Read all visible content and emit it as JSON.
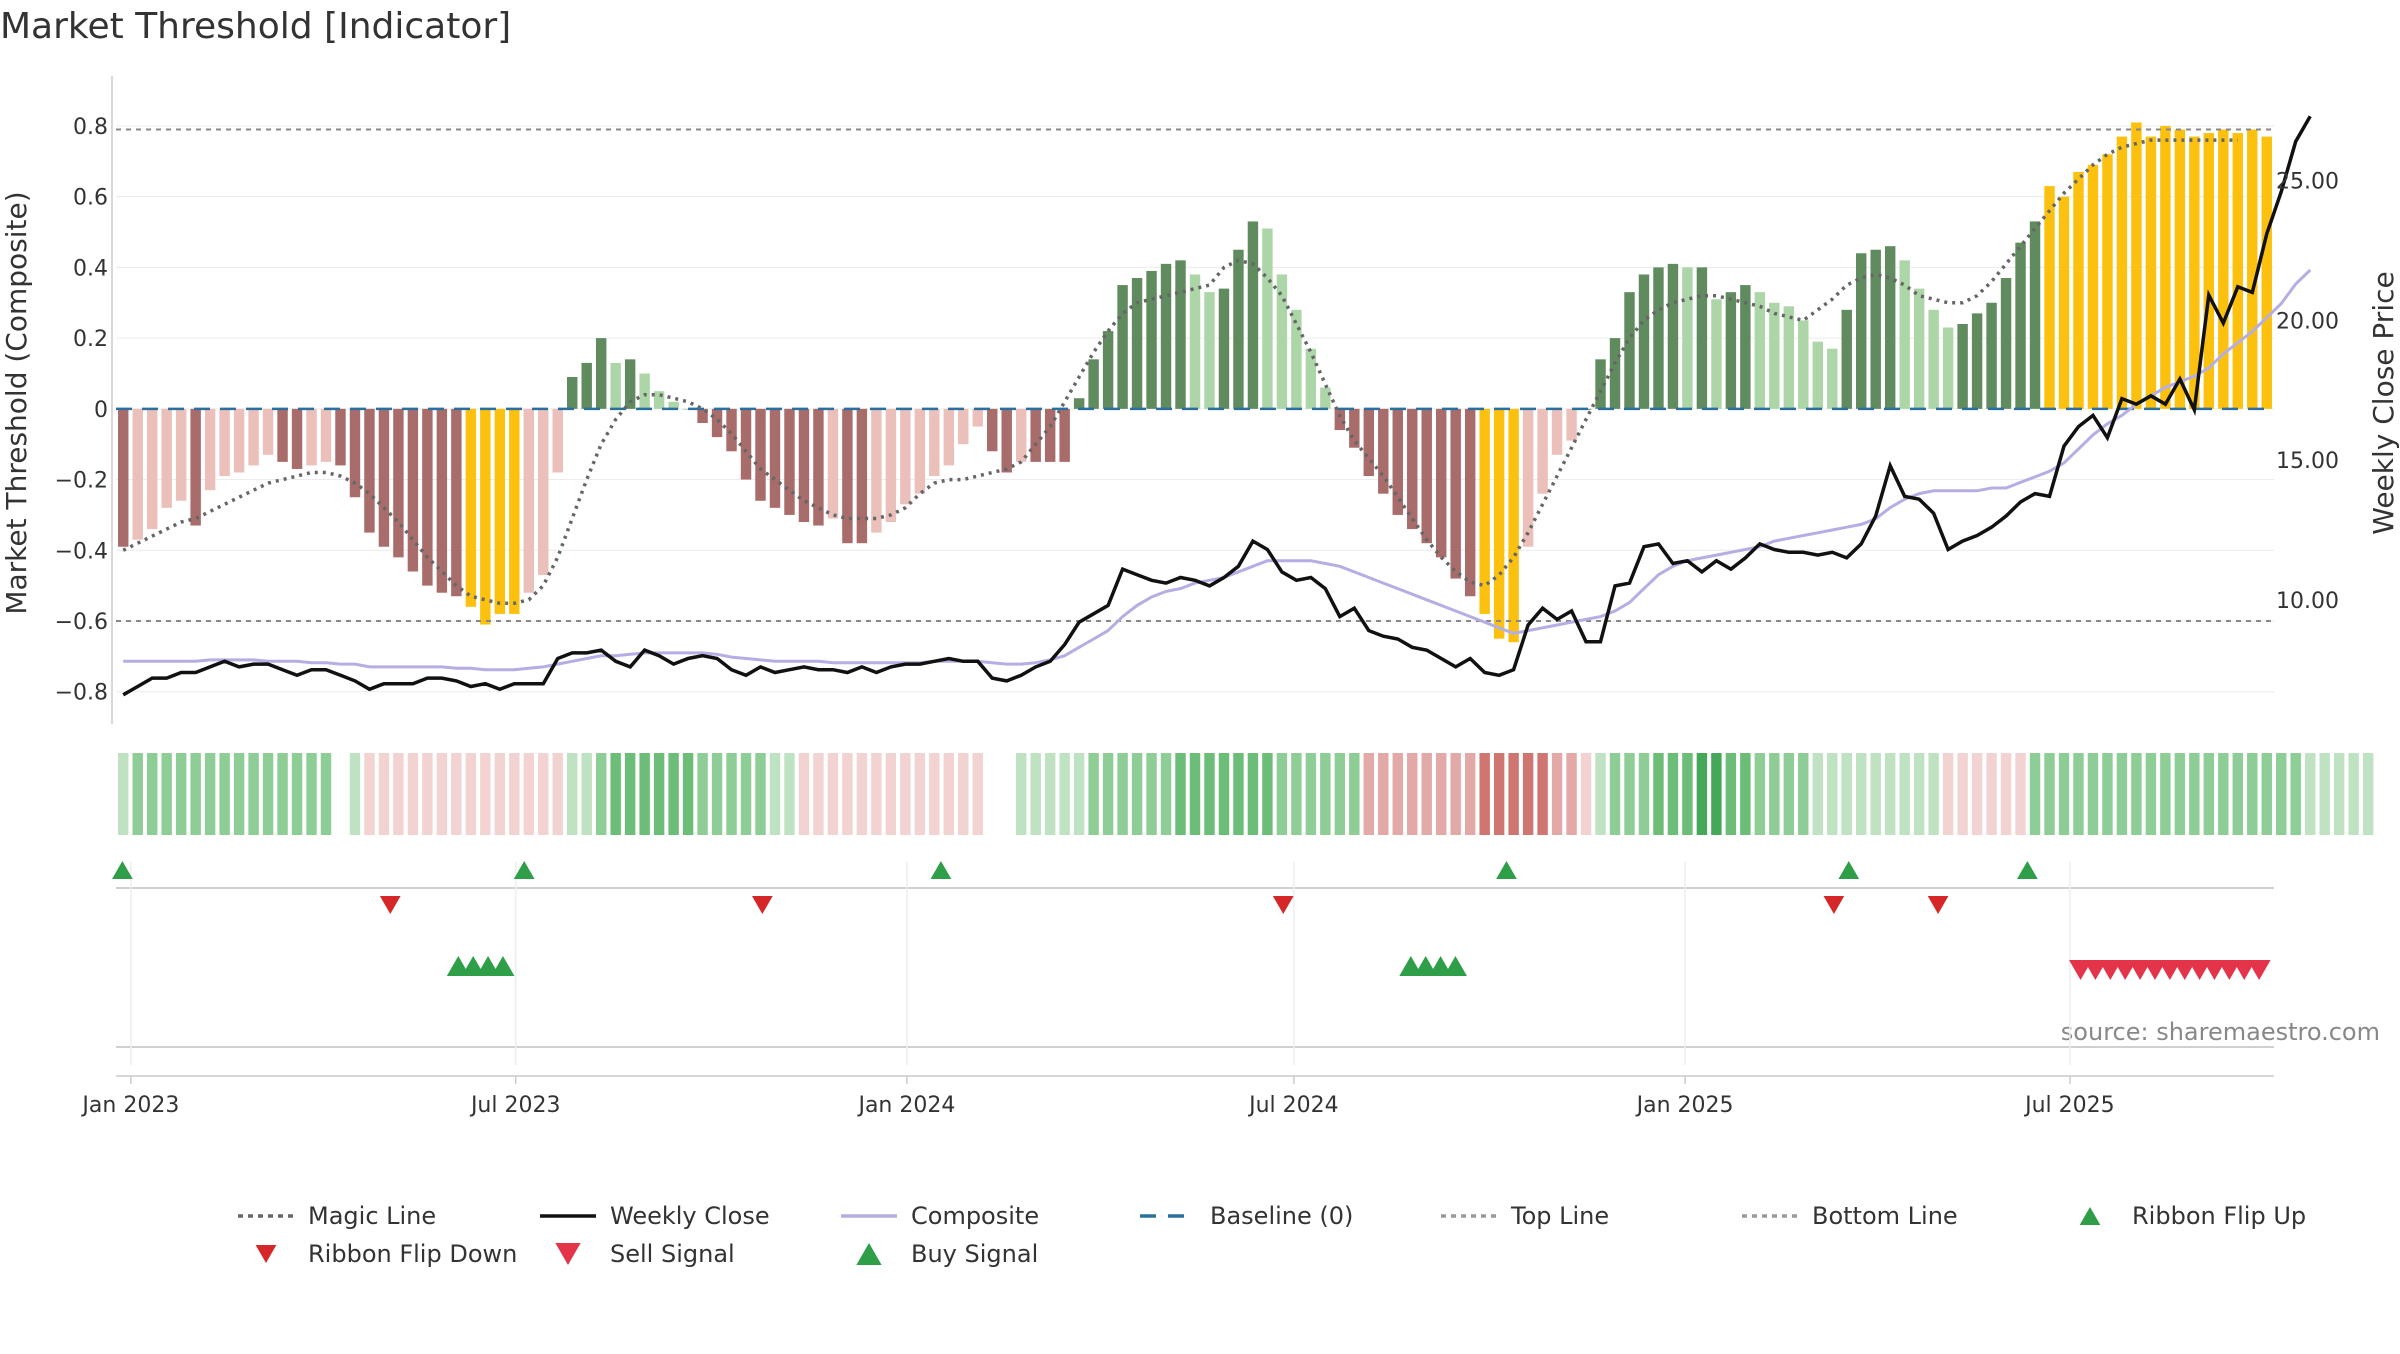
{
  "chart_data": {
    "title": "Market Threshold [Indicator]",
    "type": "bar",
    "ylabel": "Market Threshold (Composite)",
    "y2label": "Weekly Close Price",
    "ylim": [
      -0.88,
      0.93
    ],
    "y2lim": [
      5.7,
      28.6
    ],
    "yticks": [
      "0.8",
      "0.6",
      "0.4",
      "0.2",
      "0",
      "−0.2",
      "−0.4",
      "−0.6",
      "−0.8"
    ],
    "yticks_values": [
      0.8,
      0.6,
      0.4,
      0.2,
      0,
      -0.2,
      -0.4,
      -0.6,
      -0.8
    ],
    "y2ticks": [
      "25.00",
      "20.00",
      "15.00",
      "10.00"
    ],
    "y2ticks_values": [
      25,
      20,
      15,
      10
    ],
    "xlim": [
      "2022-12-25",
      "2025-10-05"
    ],
    "xticks": [
      "Jan 2023",
      "Jul 2023",
      "Jan 2024",
      "Jul 2024",
      "Jan 2025",
      "Jul 2025"
    ],
    "xticks_dates": [
      "2023-01-01",
      "2023-07-01",
      "2024-01-01",
      "2024-07-01",
      "2025-01-01",
      "2025-07-01"
    ],
    "grid": true,
    "top_line": 0.79,
    "bottom_line": -0.6,
    "baseline": 0,
    "source": "source: sharemaestro.com",
    "composite_bars": [
      -0.39,
      -0.37,
      -0.34,
      -0.28,
      -0.26,
      -0.33,
      -0.23,
      -0.19,
      -0.18,
      -0.16,
      -0.13,
      -0.15,
      -0.17,
      -0.16,
      -0.15,
      -0.16,
      -0.25,
      -0.35,
      -0.39,
      -0.42,
      -0.46,
      -0.5,
      -0.52,
      -0.53,
      -0.56,
      -0.61,
      -0.58,
      -0.58,
      -0.52,
      -0.47,
      -0.18,
      0.09,
      0.13,
      0.2,
      0.13,
      0.14,
      0.1,
      0.05,
      0.02,
      0.0,
      -0.04,
      -0.08,
      -0.12,
      -0.2,
      -0.26,
      -0.28,
      -0.3,
      -0.32,
      -0.33,
      -0.31,
      -0.38,
      -0.38,
      -0.35,
      -0.32,
      -0.27,
      -0.24,
      -0.19,
      -0.16,
      -0.1,
      -0.05,
      -0.12,
      -0.18,
      -0.15,
      -0.15,
      -0.15,
      -0.15,
      0.03,
      0.14,
      0.22,
      0.35,
      0.37,
      0.39,
      0.41,
      0.42,
      0.38,
      0.33,
      0.34,
      0.45,
      0.53,
      0.51,
      0.38,
      0.28,
      0.17,
      0.06,
      -0.06,
      -0.11,
      -0.19,
      -0.24,
      -0.3,
      -0.34,
      -0.38,
      -0.42,
      -0.48,
      -0.53,
      -0.58,
      -0.65,
      -0.66,
      -0.39,
      -0.24,
      -0.13,
      -0.09,
      0.0,
      0.14,
      0.2,
      0.33,
      0.38,
      0.4,
      0.41,
      0.4,
      0.4,
      0.31,
      0.33,
      0.35,
      0.33,
      0.3,
      0.29,
      0.25,
      0.19,
      0.17,
      0.28,
      0.44,
      0.45,
      0.46,
      0.42,
      0.34,
      0.28,
      0.23,
      0.24,
      0.27,
      0.3,
      0.37,
      0.47,
      0.53,
      0.63,
      0.6,
      0.67,
      0.69,
      0.72,
      0.77,
      0.81,
      0.77,
      0.8,
      0.79,
      0.77,
      0.78,
      0.79,
      0.78,
      0.79,
      0.77
    ],
    "series": [
      {
        "name": "Magic Line",
        "values": [
          -0.4,
          -0.38,
          -0.36,
          -0.34,
          -0.32,
          -0.31,
          -0.29,
          -0.27,
          -0.25,
          -0.23,
          -0.21,
          -0.2,
          -0.19,
          -0.18,
          -0.18,
          -0.19,
          -0.21,
          -0.24,
          -0.28,
          -0.32,
          -0.37,
          -0.42,
          -0.46,
          -0.5,
          -0.53,
          -0.54,
          -0.55,
          -0.55,
          -0.54,
          -0.5,
          -0.42,
          -0.31,
          -0.2,
          -0.1,
          -0.03,
          0.02,
          0.04,
          0.04,
          0.03,
          0.02,
          0.0,
          -0.03,
          -0.07,
          -0.12,
          -0.17,
          -0.2,
          -0.23,
          -0.26,
          -0.28,
          -0.3,
          -0.31,
          -0.31,
          -0.31,
          -0.3,
          -0.28,
          -0.24,
          -0.21,
          -0.2,
          -0.2,
          -0.19,
          -0.18,
          -0.17,
          -0.15,
          -0.1,
          -0.05,
          0.02,
          0.09,
          0.16,
          0.22,
          0.27,
          0.3,
          0.31,
          0.32,
          0.33,
          0.34,
          0.35,
          0.4,
          0.42,
          0.41,
          0.37,
          0.32,
          0.24,
          0.16,
          0.07,
          -0.02,
          -0.09,
          -0.14,
          -0.19,
          -0.25,
          -0.31,
          -0.37,
          -0.42,
          -0.46,
          -0.49,
          -0.5,
          -0.47,
          -0.42,
          -0.35,
          -0.27,
          -0.19,
          -0.11,
          -0.03,
          0.05,
          0.13,
          0.2,
          0.25,
          0.28,
          0.3,
          0.31,
          0.32,
          0.32,
          0.31,
          0.3,
          0.29,
          0.27,
          0.26,
          0.25,
          0.28,
          0.31,
          0.35,
          0.37,
          0.38,
          0.37,
          0.35,
          0.32,
          0.31,
          0.3,
          0.3,
          0.32,
          0.36,
          0.41,
          0.46,
          0.51,
          0.56,
          0.61,
          0.65,
          0.69,
          0.72,
          0.74,
          0.75,
          0.76,
          0.76,
          0.76,
          0.76,
          0.76,
          0.76,
          0.76
        ]
      },
      {
        "name": "Weekly Close",
        "values": [
          6.6,
          6.9,
          7.2,
          7.2,
          7.4,
          7.4,
          7.6,
          7.8,
          7.6,
          7.7,
          7.7,
          7.5,
          7.3,
          7.5,
          7.5,
          7.3,
          7.1,
          6.8,
          7.0,
          7.0,
          7.0,
          7.2,
          7.2,
          7.1,
          6.9,
          7.0,
          6.8,
          7.0,
          7.0,
          7.0,
          7.9,
          8.1,
          8.1,
          8.2,
          7.8,
          7.6,
          8.2,
          8.0,
          7.7,
          7.9,
          8.0,
          7.9,
          7.5,
          7.3,
          7.6,
          7.4,
          7.5,
          7.6,
          7.5,
          7.5,
          7.4,
          7.6,
          7.4,
          7.6,
          7.7,
          7.7,
          7.8,
          7.9,
          7.8,
          7.8,
          7.2,
          7.1,
          7.3,
          7.6,
          7.8,
          8.4,
          9.2,
          9.5,
          9.8,
          11.1,
          10.9,
          10.7,
          10.6,
          10.8,
          10.7,
          10.5,
          10.8,
          11.2,
          12.1,
          11.8,
          11.0,
          10.7,
          10.8,
          10.4,
          9.4,
          9.7,
          8.9,
          8.7,
          8.6,
          8.3,
          8.2,
          7.9,
          7.6,
          7.9,
          7.4,
          7.3,
          7.5,
          9.1,
          9.7,
          9.3,
          9.6,
          8.5,
          8.5,
          10.5,
          10.6,
          11.9,
          12.0,
          11.3,
          11.4,
          11.0,
          11.4,
          11.1,
          11.5,
          12.0,
          11.8,
          11.7,
          11.7,
          11.6,
          11.7,
          11.5,
          12.0,
          13.0,
          14.8,
          13.7,
          13.6,
          13.1,
          11.8,
          12.1,
          12.3,
          12.6,
          13.0,
          13.5,
          13.8,
          13.7,
          15.5,
          16.2,
          16.6,
          15.8,
          17.2,
          17.0,
          17.3,
          17.0,
          17.9,
          16.8,
          20.9,
          19.9,
          21.2,
          21.0,
          23.1,
          24.6,
          26.4,
          27.3
        ]
      },
      {
        "name": "Composite",
        "values": [
          7.8,
          7.8,
          7.8,
          7.8,
          7.8,
          7.8,
          7.85,
          7.85,
          7.85,
          7.85,
          7.8,
          7.8,
          7.8,
          7.75,
          7.75,
          7.7,
          7.7,
          7.6,
          7.6,
          7.6,
          7.6,
          7.6,
          7.6,
          7.55,
          7.55,
          7.5,
          7.5,
          7.5,
          7.55,
          7.6,
          7.7,
          7.8,
          7.9,
          8.0,
          8.0,
          8.05,
          8.1,
          8.1,
          8.1,
          8.1,
          8.1,
          8.05,
          7.95,
          7.9,
          7.85,
          7.8,
          7.8,
          7.8,
          7.8,
          7.75,
          7.75,
          7.75,
          7.75,
          7.75,
          7.75,
          7.75,
          7.8,
          7.8,
          7.8,
          7.8,
          7.75,
          7.7,
          7.7,
          7.75,
          7.85,
          8.0,
          8.3,
          8.6,
          8.9,
          9.4,
          9.8,
          10.1,
          10.3,
          10.4,
          10.6,
          10.7,
          10.8,
          11.0,
          11.2,
          11.4,
          11.4,
          11.4,
          11.4,
          11.3,
          11.2,
          11.0,
          10.8,
          10.6,
          10.4,
          10.2,
          10.0,
          9.8,
          9.6,
          9.4,
          9.2,
          9.0,
          8.8,
          8.9,
          9.0,
          9.1,
          9.2,
          9.3,
          9.4,
          9.6,
          9.9,
          10.4,
          10.9,
          11.2,
          11.4,
          11.5,
          11.6,
          11.7,
          11.8,
          11.9,
          12.1,
          12.2,
          12.3,
          12.4,
          12.5,
          12.6,
          12.7,
          12.9,
          13.3,
          13.6,
          13.8,
          13.9,
          13.9,
          13.9,
          13.9,
          14.0,
          14.0,
          14.2,
          14.4,
          14.6,
          14.9,
          15.4,
          15.9,
          16.3,
          16.6,
          17.0,
          17.3,
          17.6,
          17.8,
          18.0,
          18.3,
          18.8,
          19.2,
          19.6,
          20.1,
          20.6,
          21.3,
          21.8
        ]
      },
      {
        "name": "Baseline (0)"
      },
      {
        "name": "Top Line"
      },
      {
        "name": "Bottom Line"
      }
    ],
    "ribbon": [
      1,
      2,
      2,
      2,
      2,
      2,
      2,
      2,
      2,
      2,
      2,
      2,
      2,
      2,
      2,
      1,
      1,
      -1,
      -1,
      -1,
      -1,
      -1,
      -1,
      -1,
      -1,
      -1,
      -1,
      -1,
      -1,
      -1,
      -1,
      1,
      1,
      2,
      3,
      3,
      3,
      3,
      3,
      3,
      2,
      2,
      2,
      2,
      2,
      1,
      1,
      -1,
      -1,
      -1,
      -1,
      -1,
      -1,
      -1,
      -1,
      -1,
      -1,
      -1,
      -1,
      -1,
      -1,
      1,
      1,
      1,
      1,
      1,
      1,
      2,
      2,
      2,
      2,
      2,
      2,
      3,
      3,
      3,
      3,
      3,
      3,
      3,
      2,
      2,
      2,
      2,
      2,
      2,
      -2,
      -2,
      -2,
      -2,
      -2,
      -2,
      -2,
      -2,
      -3,
      -3,
      -3,
      -3,
      -3,
      -2,
      -2,
      -1,
      1,
      2,
      2,
      2,
      3,
      3,
      3,
      4,
      4,
      3,
      3,
      2,
      2,
      2,
      2,
      1,
      1,
      1,
      1,
      1,
      1,
      1,
      1,
      1,
      -1,
      -1,
      -1,
      -1,
      -1,
      -1,
      2,
      2,
      2,
      2,
      2,
      2,
      2,
      2,
      2,
      2,
      2,
      2,
      2,
      2,
      2,
      2,
      2,
      2,
      2,
      1,
      1,
      1,
      1,
      1
    ],
    "ribbon_gap": [
      15,
      60,
      61
    ],
    "signals": {
      "ribbon_flip_up": [
        "2022-12-28",
        "2023-07-05",
        "2024-01-17",
        "2024-10-09",
        "2025-03-19",
        "2025-06-11"
      ],
      "ribbon_flip_down": [
        "2023-05-03",
        "2023-10-25",
        "2024-06-26",
        "2025-03-12",
        "2025-04-30"
      ],
      "buy_signal": [
        "2023-06-04",
        "2023-06-11",
        "2023-06-18",
        "2023-06-25",
        "2024-08-25",
        "2024-09-01",
        "2024-09-08",
        "2024-09-15"
      ],
      "sell_signal": [
        "2025-07-06",
        "2025-07-13",
        "2025-07-20",
        "2025-07-27",
        "2025-08-03",
        "2025-08-10",
        "2025-08-17",
        "2025-08-24",
        "2025-08-31",
        "2025-09-07",
        "2025-09-14",
        "2025-09-21",
        "2025-09-28"
      ]
    },
    "legend": [
      {
        "name": "Magic Line",
        "kind": "dotted",
        "color": "#666666"
      },
      {
        "name": "Weekly Close",
        "kind": "line",
        "color": "#111111"
      },
      {
        "name": "Composite",
        "kind": "line",
        "color": "#b4aee4"
      },
      {
        "name": "Baseline (0)",
        "kind": "dashed",
        "color": "#2b6f9e"
      },
      {
        "name": "Top Line",
        "kind": "dotted",
        "color": "#999999"
      },
      {
        "name": "Bottom Line",
        "kind": "dotted",
        "color": "#999999"
      },
      {
        "name": "Ribbon Flip Up",
        "kind": "tri-up",
        "color": "#2e9e48"
      },
      {
        "name": "Ribbon Flip Down",
        "kind": "tri-down",
        "color": "#d62728"
      },
      {
        "name": "Sell Signal",
        "kind": "tri-down",
        "color": "#e3344a"
      },
      {
        "name": "Buy Signal",
        "kind": "tri-up",
        "color": "#2e9e48"
      }
    ],
    "colors": {
      "extreme": "#fcc10f",
      "pos_strong": "#5f8b5f",
      "pos_weak": "#add6a8",
      "neg_strong": "#a86c6a",
      "neg_weak": "#ebc0bb",
      "line_close": "#111111",
      "line_composite": "#b4aee4",
      "line_magic": "#666666"
    }
  }
}
